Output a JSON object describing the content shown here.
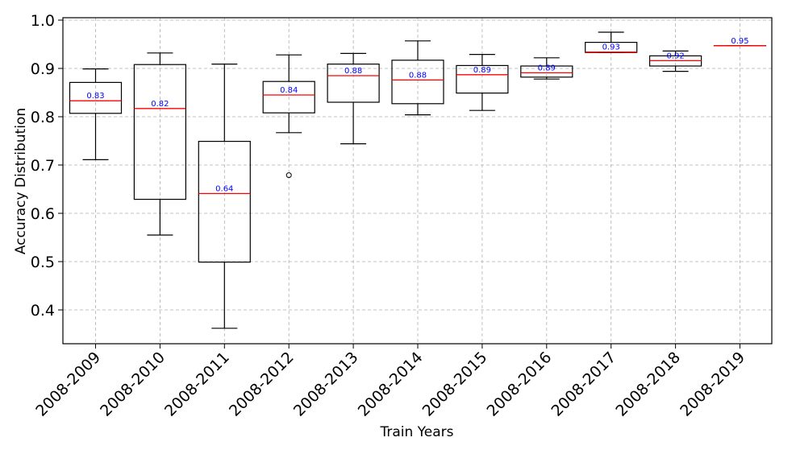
{
  "chart_data": {
    "type": "box",
    "title": "",
    "xlabel": "Train Years",
    "ylabel": "Accuracy Distribution",
    "ylim": [
      0.33,
      1.005
    ],
    "yticks": [
      0.4,
      0.5,
      0.6,
      0.7,
      0.8,
      0.9,
      1.0
    ],
    "ytick_labels": [
      "0.4",
      "0.5",
      "0.6",
      "0.7",
      "0.8",
      "0.9",
      "1.0"
    ],
    "grid": true,
    "median_color": "#ff0000",
    "median_label_color": "#0000ff",
    "boxes": [
      {
        "category": "2008-2009",
        "whislo": 0.711,
        "q1": 0.807,
        "med": 0.833,
        "q3": 0.871,
        "whishi": 0.899,
        "fliers": [],
        "label": "0.83"
      },
      {
        "category": "2008-2010",
        "whislo": 0.555,
        "q1": 0.629,
        "med": 0.817,
        "q3": 0.908,
        "whishi": 0.932,
        "fliers": [],
        "label": "0.82"
      },
      {
        "category": "2008-2011",
        "whislo": 0.362,
        "q1": 0.499,
        "med": 0.641,
        "q3": 0.749,
        "whishi": 0.909,
        "fliers": [],
        "label": "0.64"
      },
      {
        "category": "2008-2012",
        "whislo": 0.767,
        "q1": 0.808,
        "med": 0.845,
        "q3": 0.873,
        "whishi": 0.928,
        "fliers": [
          0.679
        ],
        "label": "0.84"
      },
      {
        "category": "2008-2013",
        "whislo": 0.744,
        "q1": 0.83,
        "med": 0.885,
        "q3": 0.909,
        "whishi": 0.931,
        "fliers": [],
        "label": "0.88"
      },
      {
        "category": "2008-2014",
        "whislo": 0.804,
        "q1": 0.827,
        "med": 0.876,
        "q3": 0.917,
        "whishi": 0.957,
        "fliers": [],
        "label": "0.88"
      },
      {
        "category": "2008-2015",
        "whislo": 0.813,
        "q1": 0.849,
        "med": 0.887,
        "q3": 0.906,
        "whishi": 0.929,
        "fliers": [],
        "label": "0.89"
      },
      {
        "category": "2008-2016",
        "whislo": 0.878,
        "q1": 0.882,
        "med": 0.891,
        "q3": 0.905,
        "whishi": 0.922,
        "fliers": [],
        "label": "0.89"
      },
      {
        "category": "2008-2017",
        "whislo": 0.933,
        "q1": 0.933,
        "med": 0.934,
        "q3": 0.954,
        "whishi": 0.975,
        "fliers": [],
        "label": "0.93"
      },
      {
        "category": "2008-2018",
        "whislo": 0.894,
        "q1": 0.905,
        "med": 0.916,
        "q3": 0.926,
        "whishi": 0.936,
        "fliers": [],
        "label": "0.92"
      },
      {
        "category": "2008-2019",
        "whislo": 0.947,
        "q1": 0.947,
        "med": 0.947,
        "q3": 0.947,
        "whishi": 0.947,
        "fliers": [],
        "label": "0.95"
      }
    ]
  }
}
